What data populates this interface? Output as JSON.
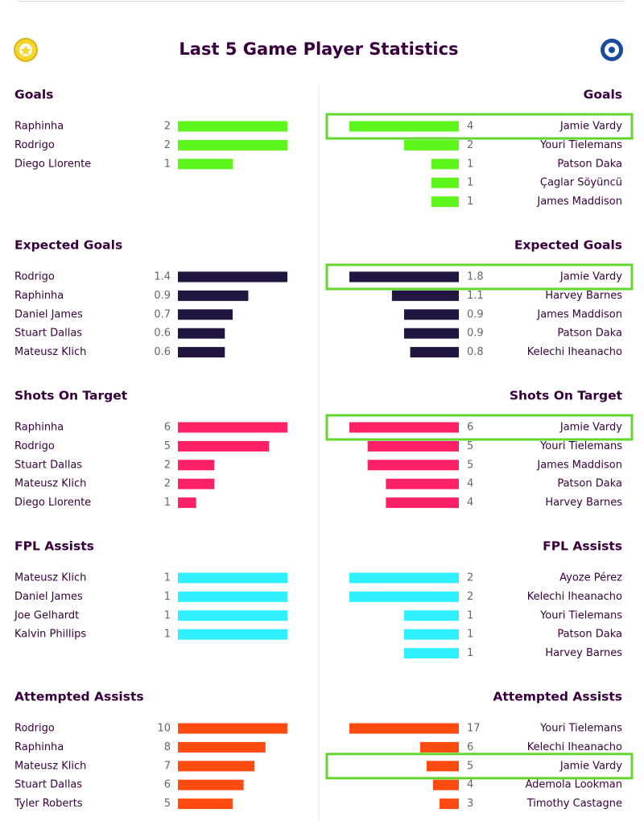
{
  "title": "Last 5 Game Player Statistics",
  "sections": [
    {
      "color": "#5cf51c",
      "left": {
        "title": "Goals",
        "players": [
          {
            "name": "Raphinha",
            "value": 2
          },
          {
            "name": "Rodrigo",
            "value": 2
          },
          {
            "name": "Diego Llorente",
            "value": 1
          }
        ]
      },
      "right": {
        "title": "Goals",
        "players": [
          {
            "name": "Jamie Vardy",
            "value": 4,
            "highlighted": true
          },
          {
            "name": "Youri Tielemans",
            "value": 2
          },
          {
            "name": "Patson Daka",
            "value": 1
          },
          {
            "name": "Çaglar Söyüncü",
            "value": 1
          },
          {
            "name": "James Maddison",
            "value": 1
          }
        ]
      }
    },
    {
      "color": "#221640",
      "left": {
        "title": "Expected Goals",
        "players": [
          {
            "name": "Rodrigo",
            "value": 1.4
          },
          {
            "name": "Raphinha",
            "value": 0.9
          },
          {
            "name": "Daniel James",
            "value": 0.7
          },
          {
            "name": "Stuart Dallas",
            "value": 0.6
          },
          {
            "name": "Mateusz Klich",
            "value": 0.6
          }
        ]
      },
      "right": {
        "title": "Expected Goals",
        "players": [
          {
            "name": "Jamie Vardy",
            "value": 1.8,
            "highlighted": true
          },
          {
            "name": "Harvey Barnes",
            "value": 1.1
          },
          {
            "name": "James Maddison",
            "value": 0.9
          },
          {
            "name": "Patson Daka",
            "value": 0.9
          },
          {
            "name": "Kelechi Iheanacho",
            "value": 0.8
          }
        ]
      }
    },
    {
      "color": "#ff2065",
      "left": {
        "title": "Shots On Target",
        "players": [
          {
            "name": "Raphinha",
            "value": 6
          },
          {
            "name": "Rodrigo",
            "value": 5
          },
          {
            "name": "Stuart Dallas",
            "value": 2
          },
          {
            "name": "Mateusz Klich",
            "value": 2
          },
          {
            "name": "Diego Llorente",
            "value": 1
          }
        ]
      },
      "right": {
        "title": "Shots On Target",
        "players": [
          {
            "name": "Jamie Vardy",
            "value": 6,
            "highlighted": true
          },
          {
            "name": "Youri Tielemans",
            "value": 5
          },
          {
            "name": "James Maddison",
            "value": 5
          },
          {
            "name": "Patson Daka",
            "value": 4
          },
          {
            "name": "Harvey Barnes",
            "value": 4
          }
        ]
      }
    },
    {
      "color": "#2ef0ff",
      "left": {
        "title": "FPL Assists",
        "players": [
          {
            "name": "Mateusz Klich",
            "value": 1
          },
          {
            "name": "Daniel James",
            "value": 1
          },
          {
            "name": "Joe Gelhardt",
            "value": 1
          },
          {
            "name": "Kalvin Phillips",
            "value": 1
          }
        ]
      },
      "right": {
        "title": "FPL Assists",
        "players": [
          {
            "name": "Ayoze Pérez",
            "value": 2
          },
          {
            "name": "Kelechi Iheanacho",
            "value": 2
          },
          {
            "name": "Youri Tielemans",
            "value": 1
          },
          {
            "name": "Patson Daka",
            "value": 1
          },
          {
            "name": "Harvey Barnes",
            "value": 1
          }
        ]
      }
    },
    {
      "color": "#ff4a10",
      "left": {
        "title": "Attempted Assists",
        "players": [
          {
            "name": "Rodrigo",
            "value": 10
          },
          {
            "name": "Raphinha",
            "value": 8
          },
          {
            "name": "Mateusz Klich",
            "value": 7
          },
          {
            "name": "Stuart Dallas",
            "value": 6
          },
          {
            "name": "Tyler Roberts",
            "value": 5
          }
        ]
      },
      "right": {
        "title": "Attempted Assists",
        "players": [
          {
            "name": "Youri Tielemans",
            "value": 17
          },
          {
            "name": "Kelechi Iheanacho",
            "value": 6
          },
          {
            "name": "Jamie Vardy",
            "value": 5,
            "highlighted": true
          },
          {
            "name": "Ademola Lookman",
            "value": 4
          },
          {
            "name": "Timothy Castagne",
            "value": 3
          }
        ]
      }
    }
  ]
}
